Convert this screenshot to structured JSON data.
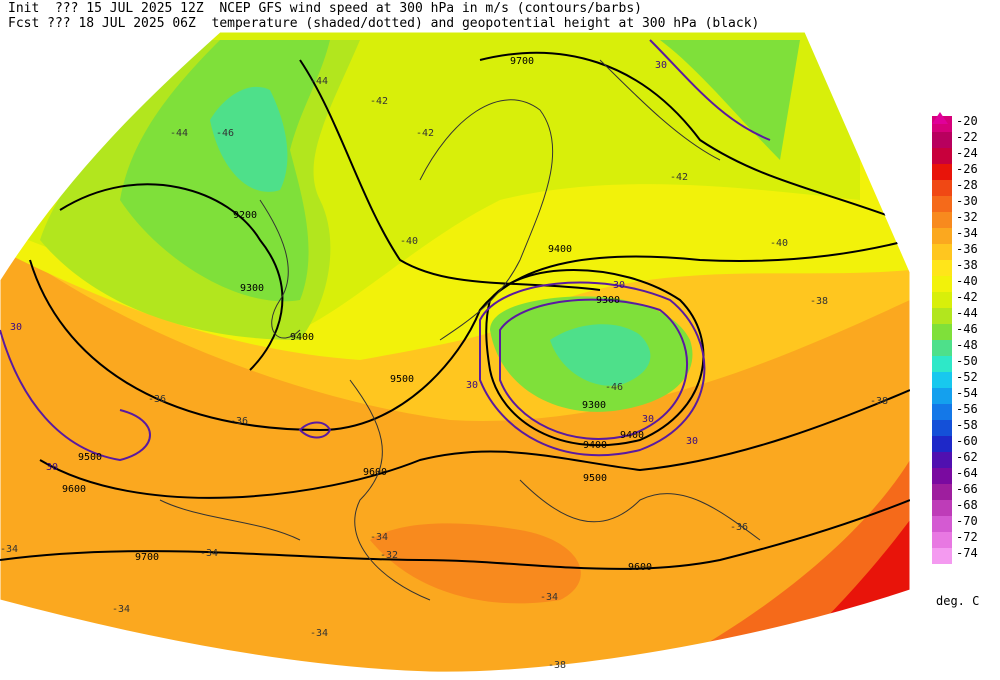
{
  "header": {
    "line1_left": "Init  ??? 15 JUL 2025 12Z",
    "line1_right": "NCEP GFS wind speed at 300 hPa in m/s (contours/barbs)",
    "line2_left": "Fcst ??? 18 JUL 2025 06Z",
    "line2_right": "temperature (shaded/dotted) and geopotential height at 300 hPa (black)"
  },
  "legend": {
    "unit": "deg. C",
    "levels": [
      "-20",
      "-22",
      "-24",
      "-26",
      "-28",
      "-30",
      "-32",
      "-34",
      "-36",
      "-38",
      "-40",
      "-42",
      "-44",
      "-46",
      "-48",
      "-50",
      "-52",
      "-54",
      "-56",
      "-58",
      "-60",
      "-62",
      "-64",
      "-66",
      "-68",
      "-70",
      "-72",
      "-74"
    ],
    "colors": [
      "#d6007a",
      "#b8005e",
      "#c8003c",
      "#e8140a",
      "#f04814",
      "#f56a1a",
      "#f88a1e",
      "#fba81f",
      "#ffc61f",
      "#ffe51a",
      "#f2f20a",
      "#d8ef0a",
      "#b2e61e",
      "#7fe03a",
      "#4ee08a",
      "#2ee8c8",
      "#18c8ee",
      "#14a0ee",
      "#1478e8",
      "#1450d8",
      "#1e28c8",
      "#5010b0",
      "#7a0aa0",
      "#9e1e9e",
      "#be3cb8",
      "#d45ad2",
      "#e878e2",
      "#f49af0"
    ]
  },
  "map_labels": {
    "heights": [
      "9200",
      "9300",
      "9400",
      "9400",
      "9500",
      "9600",
      "9600",
      "9700",
      "9300",
      "9400",
      "9500",
      "9500",
      "9600",
      "9700",
      "9300",
      "9400"
    ],
    "wind_speeds": [
      "30",
      "30",
      "30",
      "30",
      "30",
      "30",
      "30"
    ],
    "temps": [
      "-44",
      "-42",
      "-44",
      "-46",
      "-42",
      "-40",
      "-38",
      "-36",
      "-36",
      "-34",
      "-34",
      "-34",
      "-32",
      "-34",
      "-36",
      "-38",
      "-40",
      "-42",
      "-46",
      "-38",
      "-34",
      "-34"
    ]
  },
  "colors": {
    "contour": "#000000",
    "wind_contour": "#5a1aa0",
    "background": "#ffffff"
  }
}
